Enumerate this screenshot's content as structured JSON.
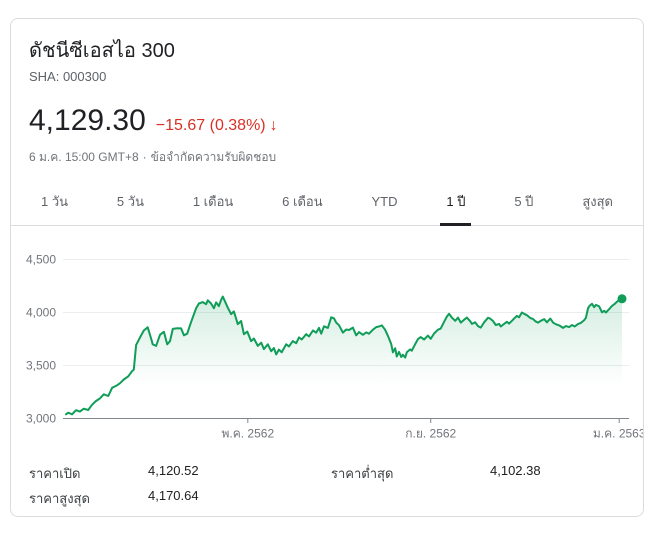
{
  "header": {
    "title": "ดัชนีซีเอสไอ 300",
    "exchange": "SHA: 000300",
    "price": "4,129.30",
    "change": "−15.67 (0.38%)",
    "change_arrow": "↓",
    "change_color": "#d93025",
    "timestamp": "6 ม.ค. 15:00 GMT+8",
    "separator": "·",
    "disclaimer": "ข้อจำกัดความรับผิดชอบ"
  },
  "tabs": {
    "items": [
      "1 วัน",
      "5 วัน",
      "1 เดือน",
      "6 เดือน",
      "YTD",
      "1 ปี",
      "5 ปี",
      "สูงสุด"
    ],
    "active": "1 ปี"
  },
  "chart_data": {
    "type": "area",
    "title": "ดัชนีซีเอสไอ 300 — 1 ปี",
    "line_color": "#0f9d58",
    "fill_color": "#0f9d58",
    "end_dot": true,
    "end_value": 4129.3,
    "ylim": [
      3000,
      4500
    ],
    "grid": true,
    "y_ticks": [
      {
        "label": "4,500",
        "value": 4500
      },
      {
        "label": "4,000",
        "value": 4000
      },
      {
        "label": "3,500",
        "value": 3500
      },
      {
        "label": "3,000",
        "value": 3000
      }
    ],
    "x_ticks": [
      {
        "label": "พ.ค. 2562",
        "pos": 32.7
      },
      {
        "label": "ก.ย. 2562",
        "pos": 65.6
      },
      {
        "label": "ม.ค. 2563",
        "pos": 99.5
      }
    ],
    "x_unit": "เปอร์เซ็นต์ของช่วง ม.ค. 2562 → ม.ค. 2563",
    "points": [
      [
        0,
        3040
      ],
      [
        0.4,
        3055
      ],
      [
        1.1,
        3040
      ],
      [
        1.8,
        3078
      ],
      [
        2.5,
        3065
      ],
      [
        3.2,
        3092
      ],
      [
        4.0,
        3080
      ],
      [
        4.7,
        3130
      ],
      [
        5.4,
        3165
      ],
      [
        6.1,
        3190
      ],
      [
        6.8,
        3228
      ],
      [
        7.6,
        3212
      ],
      [
        8.3,
        3290
      ],
      [
        9.0,
        3308
      ],
      [
        9.7,
        3332
      ],
      [
        10.4,
        3368
      ],
      [
        11.2,
        3398
      ],
      [
        11.9,
        3448
      ],
      [
        12.2,
        3460
      ],
      [
        12.6,
        3692
      ],
      [
        13.3,
        3762
      ],
      [
        14.0,
        3830
      ],
      [
        14.7,
        3860
      ],
      [
        15.3,
        3755
      ],
      [
        15.6,
        3700
      ],
      [
        16.2,
        3685
      ],
      [
        16.9,
        3790
      ],
      [
        17.6,
        3818
      ],
      [
        18.2,
        3700
      ],
      [
        18.7,
        3730
      ],
      [
        19.2,
        3845
      ],
      [
        20.0,
        3852
      ],
      [
        20.7,
        3850
      ],
      [
        21.2,
        3785
      ],
      [
        21.8,
        3800
      ],
      [
        22.3,
        3880
      ],
      [
        22.8,
        3955
      ],
      [
        23.4,
        4040
      ],
      [
        23.9,
        4085
      ],
      [
        24.6,
        4098
      ],
      [
        25.2,
        4078
      ],
      [
        25.5,
        4115
      ],
      [
        26.1,
        4085
      ],
      [
        26.6,
        4040
      ],
      [
        27.0,
        4095
      ],
      [
        27.5,
        4060
      ],
      [
        27.9,
        4120
      ],
      [
        28.2,
        4150
      ],
      [
        28.6,
        4105
      ],
      [
        29.1,
        4045
      ],
      [
        29.7,
        3985
      ],
      [
        30.2,
        4010
      ],
      [
        30.9,
        3890
      ],
      [
        31.5,
        3920
      ],
      [
        32.0,
        3795
      ],
      [
        32.6,
        3820
      ],
      [
        33.3,
        3730
      ],
      [
        33.8,
        3755
      ],
      [
        34.5,
        3685
      ],
      [
        35.1,
        3715
      ],
      [
        35.6,
        3655
      ],
      [
        36.3,
        3700
      ],
      [
        36.9,
        3635
      ],
      [
        37.4,
        3665
      ],
      [
        37.8,
        3605
      ],
      [
        38.3,
        3650
      ],
      [
        38.8,
        3625
      ],
      [
        39.6,
        3700
      ],
      [
        40.1,
        3680
      ],
      [
        40.8,
        3730
      ],
      [
        41.4,
        3710
      ],
      [
        41.9,
        3765
      ],
      [
        42.4,
        3745
      ],
      [
        43.2,
        3795
      ],
      [
        43.7,
        3775
      ],
      [
        44.4,
        3830
      ],
      [
        45.0,
        3810
      ],
      [
        45.5,
        3855
      ],
      [
        45.9,
        3800
      ],
      [
        46.4,
        3870
      ],
      [
        47.1,
        3855
      ],
      [
        47.7,
        3955
      ],
      [
        48.2,
        3945
      ],
      [
        48.6,
        3905
      ],
      [
        49.1,
        3880
      ],
      [
        49.8,
        3810
      ],
      [
        50.4,
        3840
      ],
      [
        50.9,
        3835
      ],
      [
        51.6,
        3858
      ],
      [
        52.2,
        3785
      ],
      [
        52.7,
        3815
      ],
      [
        53.4,
        3790
      ],
      [
        54.0,
        3812
      ],
      [
        54.5,
        3800
      ],
      [
        55.2,
        3838
      ],
      [
        55.8,
        3862
      ],
      [
        56.3,
        3868
      ],
      [
        56.8,
        3878
      ],
      [
        57.4,
        3838
      ],
      [
        57.9,
        3780
      ],
      [
        58.5,
        3700
      ],
      [
        58.8,
        3625
      ],
      [
        59.2,
        3662
      ],
      [
        59.5,
        3585
      ],
      [
        59.9,
        3628
      ],
      [
        60.3,
        3580
      ],
      [
        60.6,
        3602
      ],
      [
        61.0,
        3575
      ],
      [
        61.3,
        3625
      ],
      [
        61.9,
        3652
      ],
      [
        62.2,
        3640
      ],
      [
        62.8,
        3702
      ],
      [
        63.3,
        3748
      ],
      [
        63.8,
        3768
      ],
      [
        64.4,
        3745
      ],
      [
        65.1,
        3782
      ],
      [
        65.6,
        3752
      ],
      [
        66.2,
        3802
      ],
      [
        66.9,
        3838
      ],
      [
        67.4,
        3848
      ],
      [
        68.0,
        3912
      ],
      [
        68.5,
        3962
      ],
      [
        68.9,
        3988
      ],
      [
        69.4,
        3952
      ],
      [
        70.0,
        3922
      ],
      [
        70.5,
        3952
      ],
      [
        71.0,
        3905
      ],
      [
        71.6,
        3932
      ],
      [
        72.1,
        3952
      ],
      [
        72.7,
        3918
      ],
      [
        73.0,
        3892
      ],
      [
        73.6,
        3908
      ],
      [
        74.1,
        3872
      ],
      [
        74.6,
        3858
      ],
      [
        75.2,
        3908
      ],
      [
        75.9,
        3950
      ],
      [
        76.3,
        3942
      ],
      [
        76.8,
        3920
      ],
      [
        77.3,
        3882
      ],
      [
        77.9,
        3892
      ],
      [
        78.2,
        3868
      ],
      [
        78.8,
        3892
      ],
      [
        79.3,
        3912
      ],
      [
        79.7,
        3895
      ],
      [
        80.2,
        3922
      ],
      [
        80.6,
        3942
      ],
      [
        81.1,
        3968
      ],
      [
        81.5,
        3955
      ],
      [
        82.0,
        4000
      ],
      [
        82.4,
        3988
      ],
      [
        82.9,
        3975
      ],
      [
        83.5,
        3948
      ],
      [
        84.0,
        3940
      ],
      [
        84.4,
        3918
      ],
      [
        84.9,
        3905
      ],
      [
        85.4,
        3922
      ],
      [
        86.0,
        3938
      ],
      [
        86.5,
        3908
      ],
      [
        87.1,
        3942
      ],
      [
        87.6,
        3905
      ],
      [
        88.1,
        3890
      ],
      [
        88.7,
        3878
      ],
      [
        89.4,
        3855
      ],
      [
        89.9,
        3872
      ],
      [
        90.5,
        3862
      ],
      [
        91.0,
        3882
      ],
      [
        91.5,
        3868
      ],
      [
        92.1,
        3892
      ],
      [
        92.6,
        3902
      ],
      [
        93.2,
        3928
      ],
      [
        93.5,
        3950
      ],
      [
        93.9,
        4042
      ],
      [
        94.2,
        4065
      ],
      [
        94.6,
        4082
      ],
      [
        95.0,
        4050
      ],
      [
        95.3,
        4072
      ],
      [
        95.9,
        4058
      ],
      [
        96.4,
        4002
      ],
      [
        96.8,
        4015
      ],
      [
        97.1,
        4000
      ],
      [
        97.7,
        4032
      ],
      [
        98.2,
        4062
      ],
      [
        98.7,
        4082
      ],
      [
        99.3,
        4110
      ],
      [
        99.6,
        4122
      ],
      [
        100,
        4129.3
      ]
    ]
  },
  "stats": {
    "open_label": "ราคาเปิด",
    "open_value": "4,120.52",
    "high_label": "ราคาสูงสุด",
    "high_value": "4,170.64",
    "low_label": "ราคาต่ำสุด",
    "low_value": "4,102.38"
  }
}
